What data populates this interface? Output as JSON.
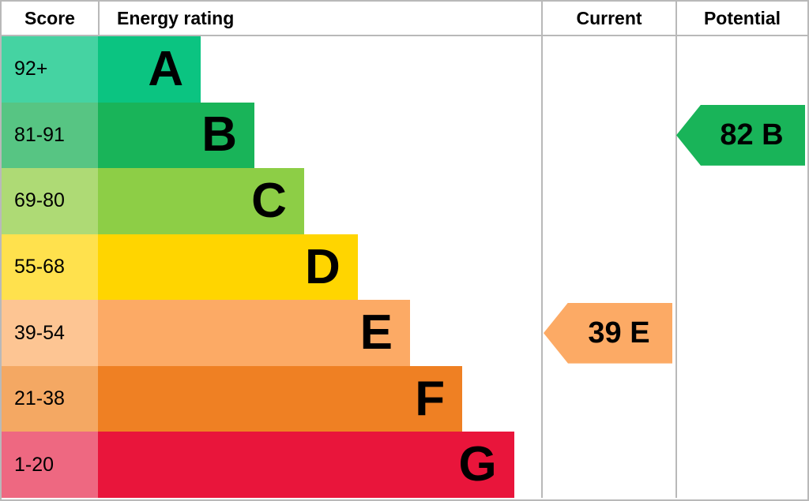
{
  "header": {
    "score": "Score",
    "energy_rating": "Energy rating",
    "current": "Current",
    "potential": "Potential"
  },
  "bands": [
    {
      "letter": "A",
      "score_range": "92+",
      "bar_color": "#0bc481",
      "score_bg": "#45d3a2",
      "width_pct": 23.2
    },
    {
      "letter": "B",
      "score_range": "81-91",
      "bar_color": "#19b459",
      "score_bg": "#57c583",
      "width_pct": 35.3
    },
    {
      "letter": "C",
      "score_range": "69-80",
      "bar_color": "#8dce46",
      "score_bg": "#aeda75",
      "width_pct": 46.5
    },
    {
      "letter": "D",
      "score_range": "55-68",
      "bar_color": "#ffd500",
      "score_bg": "#ffe14d",
      "width_pct": 58.6
    },
    {
      "letter": "E",
      "score_range": "39-54",
      "bar_color": "#fcaa65",
      "score_bg": "#fdc593",
      "width_pct": 70.4
    },
    {
      "letter": "F",
      "score_range": "21-38",
      "bar_color": "#ef8023",
      "score_bg": "#f4a863",
      "width_pct": 82.2
    },
    {
      "letter": "G",
      "score_range": "1-20",
      "bar_color": "#e9153b",
      "score_bg": "#ee6881",
      "width_pct": 93.9
    }
  ],
  "current": {
    "label": "39 E",
    "score": 39,
    "band": "E",
    "band_index": 4,
    "color": "#fcaa65"
  },
  "potential": {
    "label": "82 B",
    "score": 82,
    "band": "B",
    "band_index": 1,
    "color": "#19b459"
  },
  "chart_data": {
    "type": "bar",
    "title": "Energy rating",
    "orientation": "horizontal",
    "categories": [
      "A",
      "B",
      "C",
      "D",
      "E",
      "F",
      "G"
    ],
    "score_ranges": [
      "92+",
      "81-91",
      "69-80",
      "55-68",
      "39-54",
      "21-38",
      "1-20"
    ],
    "bar_widths_pct_of_column": [
      23.2,
      35.3,
      46.5,
      58.6,
      70.4,
      82.2,
      93.9
    ],
    "columns": [
      "Score",
      "Energy rating",
      "Current",
      "Potential"
    ],
    "current_rating": {
      "score": 39,
      "band": "E"
    },
    "potential_rating": {
      "score": 82,
      "band": "B"
    },
    "legend_position": "none",
    "grid": false
  }
}
